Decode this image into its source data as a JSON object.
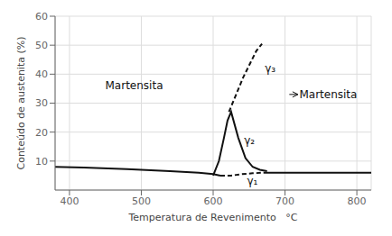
{
  "chart_data": {
    "type": "line",
    "xlabel": "Temperatura de Revenimento   °C",
    "ylabel": "Conteúdo de austenita (%)",
    "xlim": [
      380,
      820
    ],
    "ylim": [
      0,
      60
    ],
    "xticks": [
      400,
      500,
      600,
      700,
      800
    ],
    "yticks": [
      10,
      20,
      30,
      40,
      50,
      60
    ],
    "grid": true,
    "series": [
      {
        "x": [
          380,
          420,
          480,
          540,
          580,
          600,
          610
        ],
        "values": [
          8.0,
          7.8,
          7.2,
          6.5,
          6.0,
          5.5,
          5.0
        ],
        "color": "#111111",
        "line_style": "solid"
      },
      {
        "x": [
          610,
          625,
          640,
          655,
          670
        ],
        "values": [
          5.0,
          5.0,
          5.5,
          5.8,
          6.0
        ],
        "color": "#111111",
        "line_style": "dashed"
      },
      {
        "x": [
          670,
          700,
          750,
          820
        ],
        "values": [
          6.0,
          6.0,
          6.0,
          6.0
        ],
        "color": "#111111",
        "line_style": "solid"
      },
      {
        "x": [
          600,
          608,
          615,
          620,
          625,
          635,
          645,
          655,
          665,
          675
        ],
        "values": [
          5.0,
          10.0,
          18.0,
          24.0,
          27.0,
          18.0,
          11.0,
          8.0,
          7.0,
          6.5
        ],
        "color": "#111111",
        "line_style": "solid"
      },
      {
        "x": [
          622,
          632,
          642,
          652,
          660,
          668
        ],
        "values": [
          27.0,
          33.0,
          39.0,
          44.0,
          48.0,
          50.5
        ],
        "color": "#111111",
        "line_style": "dashed"
      }
    ],
    "annotations": [
      {
        "text": "Martensita",
        "x": 490,
        "y": 36,
        "align": "center"
      },
      {
        "text": "Martensita",
        "x": 720,
        "y": 33,
        "align": "left",
        "arrow": {
          "from": [
            706,
            33.0
          ],
          "to": [
            718,
            33.0
          ]
        }
      },
      {
        "text": "γ₁",
        "x": 647,
        "y": 3.0,
        "align": "left"
      },
      {
        "text": "γ₂",
        "x": 643,
        "y": 17.0,
        "align": "left"
      },
      {
        "text": "γ₃",
        "x": 672,
        "y": 42.0,
        "align": "left"
      }
    ]
  }
}
